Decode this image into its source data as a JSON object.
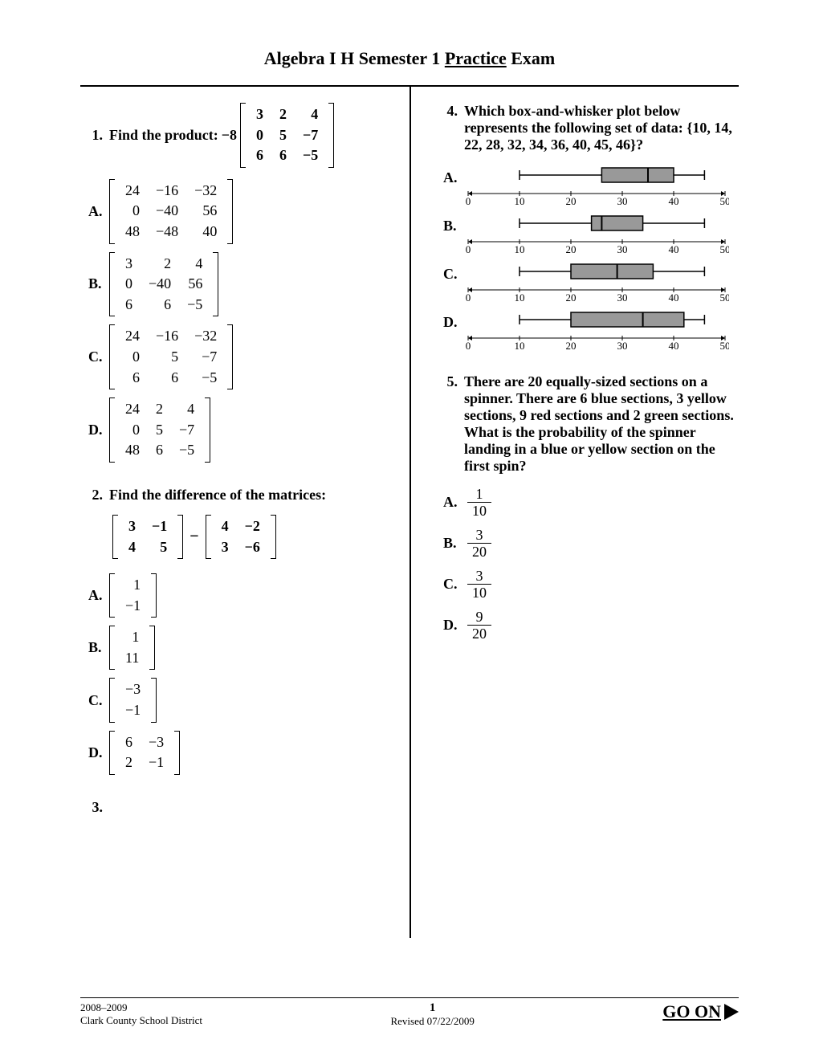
{
  "title_pre": "Algebra I H Semester 1 ",
  "title_u": "Practice",
  "title_post": " Exam",
  "q1": {
    "num": "1.",
    "lead": "Find the product:  ",
    "scalar": "−8",
    "matrix": [
      [
        "3",
        "2",
        "4"
      ],
      [
        "0",
        "5",
        "−7"
      ],
      [
        "6",
        "6",
        "−5"
      ]
    ],
    "opts": {
      "A": [
        [
          "24",
          "−16",
          "−32"
        ],
        [
          "0",
          "−40",
          "56"
        ],
        [
          "48",
          "−48",
          "40"
        ]
      ],
      "B": [
        [
          "3",
          "2",
          "4"
        ],
        [
          "0",
          "−40",
          "56"
        ],
        [
          "6",
          "6",
          "−5"
        ]
      ],
      "C": [
        [
          "24",
          "−16",
          "−32"
        ],
        [
          "0",
          "5",
          "−7"
        ],
        [
          "6",
          "6",
          "−5"
        ]
      ],
      "D": [
        [
          "24",
          "2",
          "4"
        ],
        [
          "0",
          "5",
          "−7"
        ],
        [
          "48",
          "6",
          "−5"
        ]
      ]
    }
  },
  "q2": {
    "num": "2.",
    "text": "Find the difference of the matrices:",
    "m1": [
      [
        "3",
        "−1"
      ],
      [
        "4",
        "5"
      ]
    ],
    "m2": [
      [
        "4",
        "−2"
      ],
      [
        "3",
        "−6"
      ]
    ],
    "opts": {
      "A": [
        [
          "1"
        ],
        [
          "−1"
        ]
      ],
      "B": [
        [
          "1"
        ],
        [
          "11"
        ]
      ],
      "C": [
        [
          "−3"
        ],
        [
          "−1"
        ]
      ],
      "D": [
        [
          "6",
          "−3"
        ],
        [
          "2",
          "−1"
        ]
      ]
    }
  },
  "q3": {
    "num": "3."
  },
  "q4": {
    "num": "4.",
    "text": "Which box-and-whisker plot below represents the following set of data: {10, 14, 22, 28, 32, 34, 36, 40, 45, 46}?",
    "axis": {
      "min": 0,
      "max": 50,
      "step": 10
    },
    "plots": {
      "A": {
        "min": 10,
        "q1": 26,
        "med": 35,
        "q3": 40,
        "max": 46
      },
      "B": {
        "min": 10,
        "q1": 24,
        "med": 26,
        "q3": 34,
        "max": 46
      },
      "C": {
        "min": 10,
        "q1": 20,
        "med": 29,
        "q3": 36,
        "max": 46
      },
      "D": {
        "min": 10,
        "q1": 20,
        "med": 34,
        "q3": 42,
        "max": 46
      }
    },
    "box_fill": "#999999",
    "stroke": "#000000"
  },
  "q5": {
    "num": "5.",
    "text": "There are 20 equally-sized sections on a spinner.  There are 6 blue sections, 3 yellow sections, 9 red sections and 2 green sections.  What is the probability of the spinner landing in a blue or yellow section on the first spin?",
    "opts": {
      "A": {
        "n": "1",
        "d": "10"
      },
      "B": {
        "n": "3",
        "d": "20"
      },
      "C": {
        "n": "3",
        "d": "10"
      },
      "D": {
        "n": "9",
        "d": "20"
      }
    }
  },
  "labels": {
    "A": "A.",
    "B": "B.",
    "C": "C.",
    "D": "D."
  },
  "footer": {
    "year": "2008–2009",
    "district": "Clark County School District",
    "page": "1",
    "revised": "Revised 07/22/2009",
    "goon": "GO ON"
  }
}
